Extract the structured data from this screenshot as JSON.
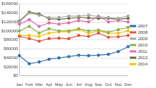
{
  "chart_data": {
    "type": "line",
    "categories": [
      "Jan",
      "Feb",
      "Mar",
      "Apr",
      "May",
      "Jun",
      "Jul",
      "Aug",
      "Sep",
      "Oct",
      "Nov",
      "Dec"
    ],
    "series": [
      {
        "name": "2007",
        "color": "#2f6fb0",
        "values": [
          45000,
          27000,
          31000,
          37000,
          40000,
          43000,
          46000,
          45000,
          46000,
          48000,
          54000,
          65000
        ]
      },
      {
        "name": "2008",
        "color": "#e8533b",
        "values": [
          88000,
          83000,
          77000,
          83000,
          84000,
          83000,
          90000,
          88000,
          95000,
          86000,
          87000,
          90000
        ]
      },
      {
        "name": "2009",
        "color": "#a5a5a5",
        "values": [
          120000,
          140000,
          135000,
          130000,
          130000,
          133000,
          133000,
          135000,
          132000,
          130000,
          128000,
          133000
        ]
      },
      {
        "name": "2010",
        "color": "#8cb34a",
        "values": [
          100000,
          110000,
          95000,
          105000,
          100000,
          100000,
          105000,
          100000,
          102000,
          97000,
          103000,
          108000
        ]
      },
      {
        "name": "2011",
        "color": "#e06ab0",
        "values": [
          115000,
          125000,
          110000,
          118000,
          115000,
          118000,
          123000,
          120000,
          133000,
          120000,
          123000,
          120000
        ]
      },
      {
        "name": "2013",
        "color": "#6b6b3a",
        "values": [
          122000,
          142000,
          138000,
          127000,
          126000,
          128000,
          130000,
          129000,
          128000,
          128000,
          126000,
          128000
        ]
      },
      {
        "name": "2014",
        "color": "#f2c500",
        "values": [
          90000,
          90000,
          88000,
          95000,
          98000,
          98000,
          103000,
          95000,
          100000,
          95000,
          95000,
          100000
        ]
      }
    ],
    "ylim": [
      0,
      160000
    ],
    "yticks": [
      {
        "value": 0,
        "label": "$0"
      },
      {
        "value": 20000,
        "label": "$20000"
      },
      {
        "value": 40000,
        "label": "$40000"
      },
      {
        "value": 60000,
        "label": "$60000"
      },
      {
        "value": 80000,
        "label": "$80000"
      },
      {
        "value": 100000,
        "label": "$100000"
      },
      {
        "value": 120000,
        "label": "$120000"
      },
      {
        "value": 140000,
        "label": "$140000"
      },
      {
        "value": 160000,
        "label": "$160000"
      }
    ],
    "grid": true,
    "legend": "right",
    "marker": "circle"
  }
}
